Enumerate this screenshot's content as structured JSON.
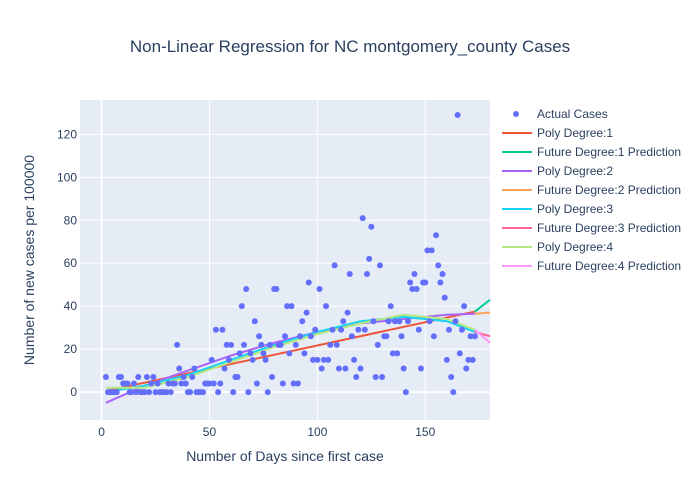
{
  "chart_data": {
    "type": "scatter",
    "title": "Non-Linear Regression for NC montgomery_county Cases",
    "xlabel": "Number of Days since first case",
    "ylabel": "Number of new cases per 100000",
    "xlim": [
      -10,
      180
    ],
    "ylim": [
      -13,
      136
    ],
    "x_ticks": [
      0,
      50,
      100,
      150
    ],
    "y_ticks": [
      0,
      20,
      40,
      60,
      80,
      100,
      120
    ],
    "grid": true,
    "legend_position": "right",
    "scatter": {
      "name": "Actual Cases",
      "color": "#636efa",
      "points": [
        [
          2,
          7
        ],
        [
          3,
          0
        ],
        [
          4,
          0
        ],
        [
          5,
          0
        ],
        [
          6,
          0
        ],
        [
          7,
          0
        ],
        [
          8,
          7
        ],
        [
          9,
          7
        ],
        [
          10,
          4
        ],
        [
          11,
          4
        ],
        [
          12,
          4
        ],
        [
          13,
          0
        ],
        [
          14,
          0
        ],
        [
          15,
          4
        ],
        [
          16,
          0
        ],
        [
          17,
          7
        ],
        [
          18,
          0
        ],
        [
          19,
          0
        ],
        [
          20,
          0
        ],
        [
          21,
          7
        ],
        [
          22,
          0
        ],
        [
          23,
          4
        ],
        [
          24,
          7
        ],
        [
          25,
          0
        ],
        [
          26,
          4
        ],
        [
          27,
          0
        ],
        [
          28,
          0
        ],
        [
          29,
          0
        ],
        [
          30,
          0
        ],
        [
          31,
          4
        ],
        [
          32,
          0
        ],
        [
          33,
          4
        ],
        [
          34,
          4
        ],
        [
          35,
          22
        ],
        [
          36,
          11
        ],
        [
          37,
          4
        ],
        [
          38,
          7
        ],
        [
          39,
          4
        ],
        [
          40,
          0
        ],
        [
          41,
          0
        ],
        [
          42,
          7
        ],
        [
          43,
          11
        ],
        [
          44,
          0
        ],
        [
          45,
          0
        ],
        [
          46,
          0
        ],
        [
          47,
          0
        ],
        [
          48,
          4
        ],
        [
          49,
          4
        ],
        [
          50,
          4
        ],
        [
          51,
          15
        ],
        [
          52,
          4
        ],
        [
          53,
          29
        ],
        [
          54,
          0
        ],
        [
          55,
          4
        ],
        [
          56,
          29
        ],
        [
          57,
          11
        ],
        [
          58,
          22
        ],
        [
          59,
          15
        ],
        [
          60,
          22
        ],
        [
          61,
          0
        ],
        [
          62,
          7
        ],
        [
          63,
          7
        ],
        [
          64,
          18
        ],
        [
          65,
          40
        ],
        [
          66,
          22
        ],
        [
          67,
          48
        ],
        [
          68,
          0
        ],
        [
          69,
          18
        ],
        [
          70,
          15
        ],
        [
          71,
          33
        ],
        [
          72,
          4
        ],
        [
          73,
          26
        ],
        [
          74,
          22
        ],
        [
          75,
          18
        ],
        [
          76,
          15
        ],
        [
          77,
          0
        ],
        [
          78,
          22
        ],
        [
          79,
          7
        ],
        [
          80,
          48
        ],
        [
          81,
          48
        ],
        [
          82,
          22
        ],
        [
          83,
          22
        ],
        [
          84,
          4
        ],
        [
          85,
          26
        ],
        [
          86,
          40
        ],
        [
          87,
          18
        ],
        [
          88,
          40
        ],
        [
          89,
          4
        ],
        [
          90,
          22
        ],
        [
          91,
          4
        ],
        [
          92,
          26
        ],
        [
          93,
          33
        ],
        [
          94,
          18
        ],
        [
          95,
          37
        ],
        [
          96,
          51
        ],
        [
          97,
          26
        ],
        [
          98,
          15
        ],
        [
          99,
          29
        ],
        [
          100,
          15
        ],
        [
          101,
          48
        ],
        [
          102,
          11
        ],
        [
          103,
          15
        ],
        [
          104,
          40
        ],
        [
          105,
          15
        ],
        [
          106,
          22
        ],
        [
          107,
          29
        ],
        [
          108,
          59
        ],
        [
          109,
          22
        ],
        [
          110,
          11
        ],
        [
          111,
          29
        ],
        [
          112,
          33
        ],
        [
          113,
          11
        ],
        [
          114,
          37
        ],
        [
          115,
          55
        ],
        [
          116,
          26
        ],
        [
          117,
          15
        ],
        [
          118,
          7
        ],
        [
          119,
          29
        ],
        [
          120,
          11
        ],
        [
          121,
          81
        ],
        [
          122,
          29
        ],
        [
          123,
          55
        ],
        [
          124,
          62
        ],
        [
          125,
          77
        ],
        [
          126,
          33
        ],
        [
          127,
          7
        ],
        [
          128,
          22
        ],
        [
          129,
          59
        ],
        [
          130,
          7
        ],
        [
          131,
          26
        ],
        [
          132,
          26
        ],
        [
          133,
          33
        ],
        [
          134,
          40
        ],
        [
          135,
          18
        ],
        [
          136,
          33
        ],
        [
          137,
          18
        ],
        [
          138,
          33
        ],
        [
          139,
          26
        ],
        [
          140,
          11
        ],
        [
          141,
          0
        ],
        [
          142,
          33
        ],
        [
          143,
          51
        ],
        [
          144,
          48
        ],
        [
          145,
          55
        ],
        [
          146,
          48
        ],
        [
          147,
          29
        ],
        [
          148,
          11
        ],
        [
          149,
          51
        ],
        [
          150,
          51
        ],
        [
          151,
          66
        ],
        [
          152,
          33
        ],
        [
          153,
          66
        ],
        [
          154,
          26
        ],
        [
          155,
          73
        ],
        [
          156,
          59
        ],
        [
          157,
          51
        ],
        [
          158,
          55
        ],
        [
          159,
          44
        ],
        [
          160,
          15
        ],
        [
          161,
          29
        ],
        [
          162,
          7
        ],
        [
          163,
          0
        ],
        [
          164,
          33
        ],
        [
          165,
          129
        ],
        [
          166,
          18
        ],
        [
          167,
          29
        ],
        [
          168,
          40
        ],
        [
          169,
          11
        ],
        [
          170,
          15
        ],
        [
          171,
          26
        ],
        [
          172,
          15
        ],
        [
          173,
          26
        ]
      ]
    },
    "series": [
      {
        "name": "Poly Degree:1",
        "color": "#ef553b",
        "x": [
          2,
          173
        ],
        "y": [
          0.5,
          37.5
        ]
      },
      {
        "name": "Future Degree:1 Prediction",
        "color": "#00cc96",
        "x": [
          173,
          180
        ],
        "y": [
          37.5,
          43
        ]
      },
      {
        "name": "Poly Degree:2",
        "color": "#ab63fa",
        "x": [
          2,
          20,
          40,
          60,
          80,
          100,
          120,
          140,
          160,
          173
        ],
        "y": [
          -5,
          3,
          10,
          17,
          23,
          28,
          32,
          34,
          36,
          36.5
        ]
      },
      {
        "name": "Future Degree:2 Prediction",
        "color": "#ffa15a",
        "x": [
          173,
          180
        ],
        "y": [
          36.5,
          37
        ]
      },
      {
        "name": "Poly Degree:3",
        "color": "#19d3f3",
        "x": [
          2,
          20,
          40,
          60,
          80,
          100,
          120,
          140,
          160,
          173
        ],
        "y": [
          0,
          3,
          8,
          15,
          22,
          28,
          33,
          35,
          33,
          28
        ]
      },
      {
        "name": "Future Degree:3 Prediction",
        "color": "#ff6692",
        "x": [
          173,
          180
        ],
        "y": [
          28,
          26
        ]
      },
      {
        "name": "Poly Degree:4",
        "color": "#b6e880",
        "x": [
          2,
          20,
          40,
          60,
          80,
          100,
          120,
          140,
          160,
          173
        ],
        "y": [
          2,
          2,
          7,
          14,
          21,
          27,
          32,
          36,
          34,
          29
        ]
      },
      {
        "name": "Future Degree:4 Prediction",
        "color": "#ff97ff",
        "x": [
          173,
          180
        ],
        "y": [
          29,
          23
        ]
      }
    ]
  }
}
